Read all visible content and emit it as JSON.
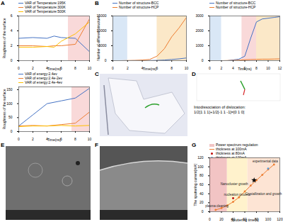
{
  "chart_data": [
    {
      "type": "line",
      "label": "A",
      "x_label": "Time(ns)",
      "y_label": "Roughness of the surface",
      "x": [
        0,
        2,
        4,
        5,
        6,
        8,
        10
      ],
      "xlim": [
        0,
        10
      ],
      "xticks": [
        0,
        2,
        4,
        6,
        8,
        10
      ],
      "ylim": [
        0,
        6
      ],
      "yticks": [
        0,
        2,
        4,
        6
      ],
      "regions": [
        {
          "x0": 7,
          "x1": 10,
          "color": "#f9d9d9"
        }
      ],
      "series": [
        {
          "name": "VAR of Temperature:195K",
          "color": "#4472c4",
          "values": [
            3.0,
            3.1,
            3.0,
            3.3,
            3.1,
            3.0,
            1.2
          ]
        },
        {
          "name": "VAR of Temperature:300K",
          "color": "#ed7d31",
          "values": [
            2.0,
            2.0,
            1.9,
            2.0,
            2.0,
            2.2,
            5.6
          ]
        },
        {
          "name": "VAR of Temperature:500K",
          "color": "#ffc000",
          "values": [
            1.8,
            1.8,
            1.9,
            1.8,
            2.6,
            3.6,
            5.2
          ]
        }
      ]
    },
    {
      "type": "line",
      "label": "B",
      "x_label": "Time(ns)",
      "y_label": "Number of different structure",
      "x": [
        0,
        1,
        2,
        3,
        4,
        5,
        6,
        7,
        8,
        9,
        10
      ],
      "xlim": [
        0,
        10
      ],
      "xticks": [
        0,
        2,
        4,
        6,
        8,
        10
      ],
      "ylim": [
        0,
        15000
      ],
      "yticks": [
        0,
        5000,
        10000,
        15000
      ],
      "regions": [
        {
          "x0": 0,
          "x1": 2,
          "color": "#d9e7f6"
        },
        {
          "x0": 6,
          "x1": 10,
          "color": "#fbe8c8"
        }
      ],
      "series": [
        {
          "name": "Number of structure-BCC",
          "color": "#4472c4",
          "values": [
            0,
            0,
            0,
            20,
            30,
            50,
            100,
            200,
            400,
            600,
            900
          ]
        },
        {
          "name": "Number of structure-HCP",
          "color": "#ed7d31",
          "values": [
            0,
            0,
            50,
            100,
            200,
            400,
            1500,
            4000,
            8000,
            11000,
            14500
          ]
        }
      ]
    },
    {
      "type": "line",
      "x_label": "Time(ns)",
      "x": [
        0,
        1,
        2,
        3,
        4,
        5,
        6,
        7,
        8,
        9,
        10,
        11,
        12
      ],
      "xlim": [
        0,
        12
      ],
      "xticks": [
        0,
        2,
        4,
        6,
        8,
        10,
        12
      ],
      "ylim": [
        0,
        3000
      ],
      "yticks": [
        0,
        1000,
        2000,
        3000
      ],
      "regions": [
        {
          "x0": 0,
          "x1": 2,
          "color": "#d9e7f6"
        },
        {
          "x0": 5.5,
          "x1": 8,
          "color": "#f9d9d9"
        },
        {
          "x0": 8,
          "x1": 12,
          "color": "#fbe8c8"
        }
      ],
      "series": [
        {
          "name": "Number of structure-BCC",
          "color": "#4472c4",
          "values": [
            0,
            0,
            0,
            0,
            50,
            100,
            300,
            1500,
            2600,
            2800,
            2850,
            2900,
            2950
          ]
        },
        {
          "name": "Number of structure-HCP",
          "color": "#ed7d31",
          "values": [
            0,
            0,
            0,
            10,
            20,
            40,
            60,
            80,
            90,
            100,
            100,
            110,
            120
          ]
        }
      ]
    },
    {
      "type": "line",
      "x_label": "Time(ns)",
      "y_label": "Roughness of the surface",
      "x": [
        0,
        2,
        4,
        6,
        8,
        10
      ],
      "xlim": [
        0,
        10
      ],
      "xticks": [
        0,
        2,
        4,
        6,
        8,
        10
      ],
      "ylim": [
        0,
        160
      ],
      "yticks": [
        0,
        50,
        100,
        150
      ],
      "regions": [
        {
          "x0": 7.5,
          "x1": 10,
          "color": "#f9d9d9"
        }
      ],
      "series": [
        {
          "name": "VAR of energy:2.4ev",
          "color": "#4472c4",
          "values": [
            20,
            60,
            100,
            110,
            120,
            155
          ]
        },
        {
          "name": "VAR of energy:2.4e-2ev",
          "color": "#ed7d31",
          "values": [
            20,
            22,
            20,
            25,
            30,
            70
          ]
        },
        {
          "name": "VAR of energy:2.4e-4ev",
          "color": "#ffc000",
          "values": [
            18,
            20,
            20,
            22,
            20,
            22
          ]
        }
      ]
    },
    {
      "type": "line",
      "label": "G",
      "x_label": "Sputtering time(s)",
      "y_label": "The sputtering current(mA)",
      "xlim": [
        0,
        120
      ],
      "xticks": [
        0,
        20,
        40,
        60,
        80,
        100,
        120
      ],
      "ylim": [
        0,
        120
      ],
      "yticks": [
        0,
        20,
        40,
        60,
        80,
        100,
        120
      ],
      "regions": [
        {
          "x0": 0,
          "x1": 30,
          "color": "#f2c4c4",
          "label": "Power spectrum regulation"
        },
        {
          "x0": 30,
          "x1": 65,
          "color": "#fff2cc"
        },
        {
          "x0": 65,
          "x1": 120,
          "color": "#fde4d4"
        }
      ],
      "series": [
        {
          "name": "thickness at 100mA",
          "color": "#ed7d31",
          "marker": "circle",
          "x": [
            10,
            20,
            30,
            40,
            50,
            60,
            70,
            80,
            90,
            100,
            110
          ],
          "values": [
            4,
            8,
            14,
            22,
            32,
            45,
            58,
            70,
            82,
            94,
            105
          ]
        },
        {
          "name": "thickness at 80mA",
          "color": "#c00000",
          "type": "scatter",
          "marker": "circle",
          "x": [
            40
          ],
          "values": [
            30
          ]
        },
        {
          "name": "thickness at 120mA",
          "color": "#5b9bd5",
          "type": "scatter",
          "marker": "circle",
          "x": [
            100
          ],
          "values": [
            96
          ]
        }
      ],
      "markers": [
        {
          "x": 76,
          "y": 70,
          "marker": "star",
          "color": "#000000"
        }
      ],
      "annotations": [
        {
          "x": 12,
          "y": 12,
          "text": "plasma cleaning"
        },
        {
          "x": 42,
          "y": 62,
          "text": "Nanocluster growth"
        },
        {
          "x": 47,
          "y": 38,
          "text": "nucleation process"
        },
        {
          "x": 92,
          "y": 40,
          "text": "Crystallization and growth"
        },
        {
          "x": 95,
          "y": 112,
          "text": "experimental data"
        }
      ]
    }
  ],
  "panels": [
    {
      "label": "C"
    },
    {
      "label": "D",
      "text": [
        "Intodissociation of dislocation:",
        "1/2[1 1 1]+1/2[-1 1 -1]=[0 1 0]"
      ]
    },
    {
      "label": "E"
    },
    {
      "label": "F"
    }
  ]
}
